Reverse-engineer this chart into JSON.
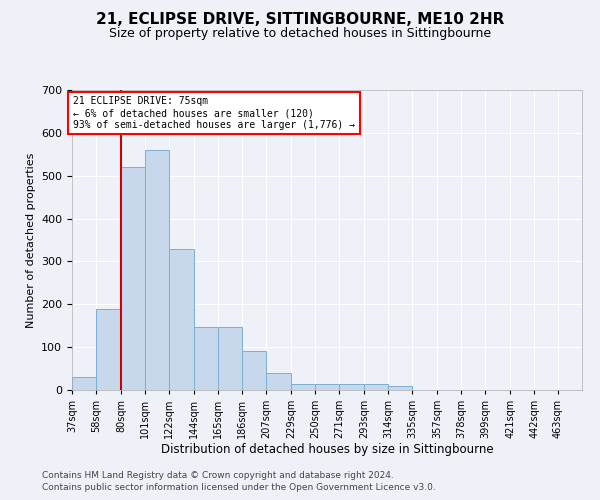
{
  "title": "21, ECLIPSE DRIVE, SITTINGBOURNE, ME10 2HR",
  "subtitle": "Size of property relative to detached houses in Sittingbourne",
  "xlabel": "Distribution of detached houses by size in Sittingbourne",
  "ylabel": "Number of detached properties",
  "footer_line1": "Contains HM Land Registry data © Crown copyright and database right 2024.",
  "footer_line2": "Contains public sector information licensed under the Open Government Licence v3.0.",
  "annotation_title": "21 ECLIPSE DRIVE: 75sqm",
  "annotation_line1": "← 6% of detached houses are smaller (120)",
  "annotation_line2": "93% of semi-detached houses are larger (1,776) →",
  "property_line_x": 80,
  "bar_color": "#c8d8ec",
  "bar_edge_color": "#7aafd4",
  "line_color": "#cc0000",
  "background_color": "#eef2f8",
  "categories": [
    "37sqm",
    "58sqm",
    "80sqm",
    "101sqm",
    "122sqm",
    "144sqm",
    "165sqm",
    "186sqm",
    "207sqm",
    "229sqm",
    "250sqm",
    "271sqm",
    "293sqm",
    "314sqm",
    "335sqm",
    "357sqm",
    "378sqm",
    "399sqm",
    "421sqm",
    "442sqm",
    "463sqm"
  ],
  "bin_edges": [
    37,
    58,
    80,
    101,
    122,
    144,
    165,
    186,
    207,
    229,
    250,
    271,
    293,
    314,
    335,
    357,
    378,
    399,
    421,
    442,
    463
  ],
  "values": [
    30,
    190,
    520,
    560,
    330,
    148,
    148,
    90,
    40,
    13,
    13,
    13,
    13,
    10,
    0,
    0,
    0,
    0,
    0,
    0,
    0
  ],
  "ylim": [
    0,
    700
  ],
  "yticks": [
    0,
    100,
    200,
    300,
    400,
    500,
    600,
    700
  ]
}
